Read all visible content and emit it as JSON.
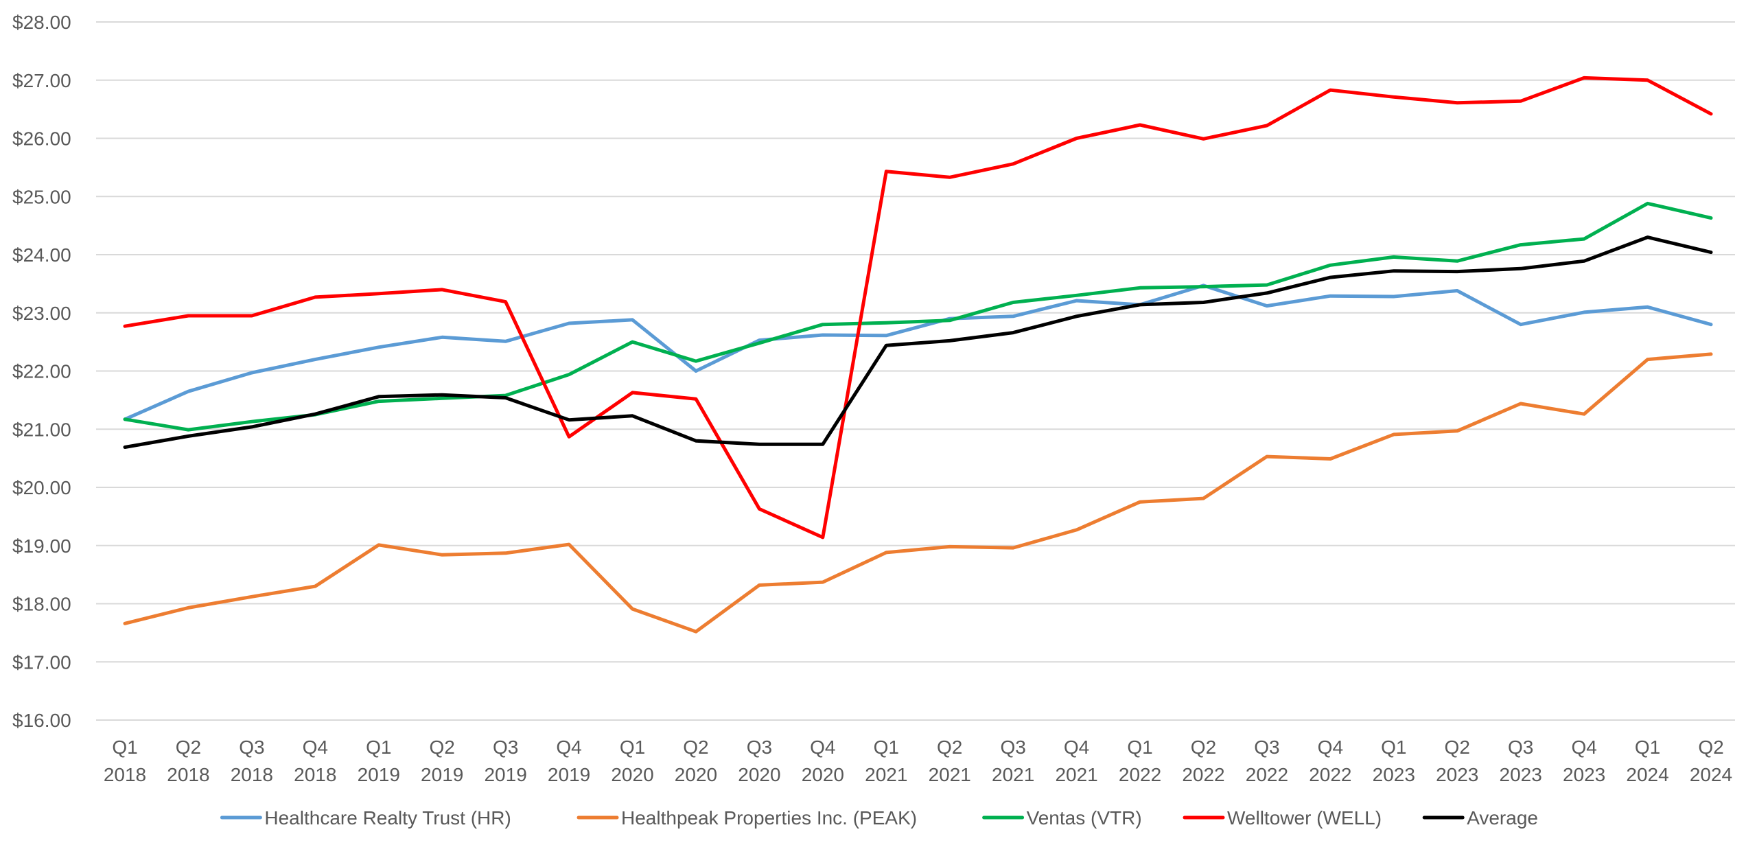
{
  "chart_data": {
    "type": "line",
    "title": "",
    "xlabel": "",
    "ylabel": "",
    "ylim": [
      16,
      28
    ],
    "y_ticks": [
      "$16.00",
      "$17.00",
      "$18.00",
      "$19.00",
      "$20.00",
      "$21.00",
      "$22.00",
      "$23.00",
      "$24.00",
      "$25.00",
      "$26.00",
      "$27.00",
      "$28.00"
    ],
    "grid": "horizontal",
    "legend_position": "bottom",
    "categories": [
      [
        "Q1",
        "2018"
      ],
      [
        "Q2",
        "2018"
      ],
      [
        "Q3",
        "2018"
      ],
      [
        "Q4",
        "2018"
      ],
      [
        "Q1",
        "2019"
      ],
      [
        "Q2",
        "2019"
      ],
      [
        "Q3",
        "2019"
      ],
      [
        "Q4",
        "2019"
      ],
      [
        "Q1",
        "2020"
      ],
      [
        "Q2",
        "2020"
      ],
      [
        "Q3",
        "2020"
      ],
      [
        "Q4",
        "2020"
      ],
      [
        "Q1",
        "2021"
      ],
      [
        "Q2",
        "2021"
      ],
      [
        "Q3",
        "2021"
      ],
      [
        "Q4",
        "2021"
      ],
      [
        "Q1",
        "2022"
      ],
      [
        "Q2",
        "2022"
      ],
      [
        "Q3",
        "2022"
      ],
      [
        "Q4",
        "2022"
      ],
      [
        "Q1",
        "2023"
      ],
      [
        "Q2",
        "2023"
      ],
      [
        "Q3",
        "2023"
      ],
      [
        "Q4",
        "2023"
      ],
      [
        "Q1",
        "2024"
      ],
      [
        "Q2",
        "2024"
      ]
    ],
    "series": [
      {
        "name": "Healthcare Realty Trust (HR)",
        "color": "#5b9bd5",
        "values": [
          21.17,
          21.65,
          21.97,
          22.2,
          22.41,
          22.58,
          22.51,
          22.82,
          22.88,
          22.0,
          22.53,
          22.62,
          22.61,
          22.9,
          22.94,
          23.21,
          23.14,
          23.47,
          23.12,
          23.29,
          23.28,
          23.38,
          22.8,
          23.01,
          23.1,
          22.8
        ]
      },
      {
        "name": "Healthpeak Properties Inc. (PEAK)",
        "color": "#ed7d31",
        "values": [
          17.66,
          17.93,
          18.12,
          18.3,
          19.01,
          18.84,
          18.87,
          19.02,
          17.91,
          17.52,
          18.32,
          18.37,
          18.88,
          18.98,
          18.96,
          19.27,
          19.75,
          19.81,
          20.53,
          20.49,
          20.91,
          20.97,
          21.44,
          21.26,
          22.2,
          22.29
        ]
      },
      {
        "name": "Ventas (VTR)",
        "color": "#00b050",
        "values": [
          21.17,
          20.99,
          21.13,
          21.25,
          21.48,
          21.53,
          21.58,
          21.94,
          22.5,
          22.17,
          22.48,
          22.8,
          22.83,
          22.87,
          23.18,
          23.3,
          23.43,
          23.45,
          23.48,
          23.82,
          23.96,
          23.89,
          24.17,
          24.27,
          24.88,
          24.63
        ]
      },
      {
        "name": "Welltower (WELL)",
        "color": "#ff0000",
        "values": [
          22.77,
          22.95,
          22.95,
          23.27,
          23.33,
          23.4,
          23.19,
          20.87,
          21.63,
          21.52,
          19.63,
          19.14,
          25.43,
          25.33,
          25.56,
          26.0,
          26.23,
          25.99,
          26.22,
          26.83,
          26.71,
          26.61,
          26.64,
          27.04,
          27.0,
          26.42
        ]
      },
      {
        "name": "Average",
        "color": "#000000",
        "values": [
          20.69,
          20.88,
          21.04,
          21.26,
          21.56,
          21.59,
          21.54,
          21.16,
          21.23,
          20.8,
          20.74,
          20.74,
          22.44,
          22.52,
          22.66,
          22.94,
          23.14,
          23.18,
          23.34,
          23.61,
          23.72,
          23.71,
          23.76,
          23.89,
          24.3,
          24.04
        ]
      }
    ]
  }
}
